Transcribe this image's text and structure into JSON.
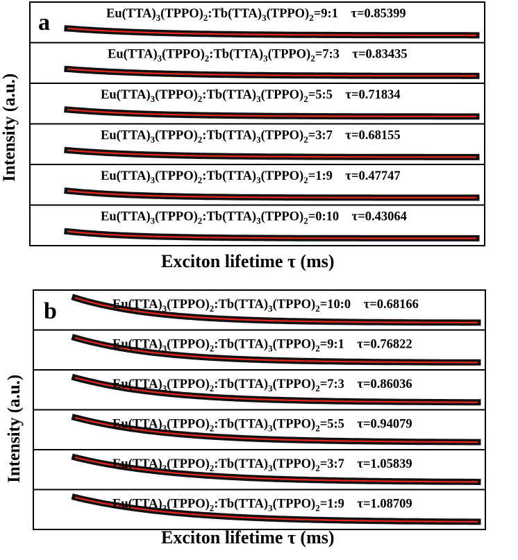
{
  "chart_data": [
    {
      "type": "line",
      "panel_label": "a",
      "xlabel": "Exciton lifetime τ (ms)",
      "ylabel": "Intensity (a.u.)",
      "stacked_subplots": true,
      "series": [
        {
          "label_prefix": "Eu(TTA)",
          "ratio": "9:1",
          "tau": "0.85399",
          "tau_ms": 0.85399
        },
        {
          "label_prefix": "Eu(TTA)",
          "ratio": "7:3",
          "tau": "0.83435",
          "tau_ms": 0.83435
        },
        {
          "label_prefix": "Eu(TTA)",
          "ratio": "5:5",
          "tau": "0.71834",
          "tau_ms": 0.71834
        },
        {
          "label_prefix": "Eu(TTA)",
          "ratio": "3:7",
          "tau": "0.68155",
          "tau_ms": 0.68155
        },
        {
          "label_prefix": "Eu(TTA)",
          "ratio": "1:9",
          "tau": "0.47747",
          "tau_ms": 0.47747
        },
        {
          "label_prefix": "Eu(TTA)",
          "ratio": "0:10",
          "tau": "0.43064",
          "tau_ms": 0.43064
        }
      ]
    },
    {
      "type": "line",
      "panel_label": "b",
      "xlabel": "Exciton lifetime τ (ms)",
      "ylabel": "Intensity (a.u.)",
      "stacked_subplots": true,
      "series": [
        {
          "label_prefix": "Eu(TTA)",
          "ratio": "10:0",
          "tau": "0.68166",
          "tau_ms": 0.68166
        },
        {
          "label_prefix": "Eu(TTA)",
          "ratio": "9:1",
          "tau": "0.76822",
          "tau_ms": 0.76822
        },
        {
          "label_prefix": "Eu(TTA)",
          "ratio": "7:3",
          "tau": "0.86036",
          "tau_ms": 0.86036
        },
        {
          "label_prefix": "Eu(TTA)",
          "ratio": "5:5",
          "tau": "0.94079",
          "tau_ms": 0.94079
        },
        {
          "label_prefix": "Eu(TTA)",
          "ratio": "3:7",
          "tau": "1.05839",
          "tau_ms": 1.05839
        },
        {
          "label_prefix": "Eu(TTA)",
          "ratio": "1:9",
          "tau": "1.08709",
          "tau_ms": 1.08709
        }
      ]
    }
  ],
  "formula": {
    "eu_base": "Eu(TTA)",
    "tb_base": "Tb(TTA)",
    "tppo": "(TPPO)",
    "sub3": "3",
    "sub2": "2",
    "colon": ":",
    "equals": "=",
    "tau_symbol": "τ="
  },
  "colors": {
    "data": "#111111",
    "fit": "#e8261c",
    "frame": "#000000"
  }
}
